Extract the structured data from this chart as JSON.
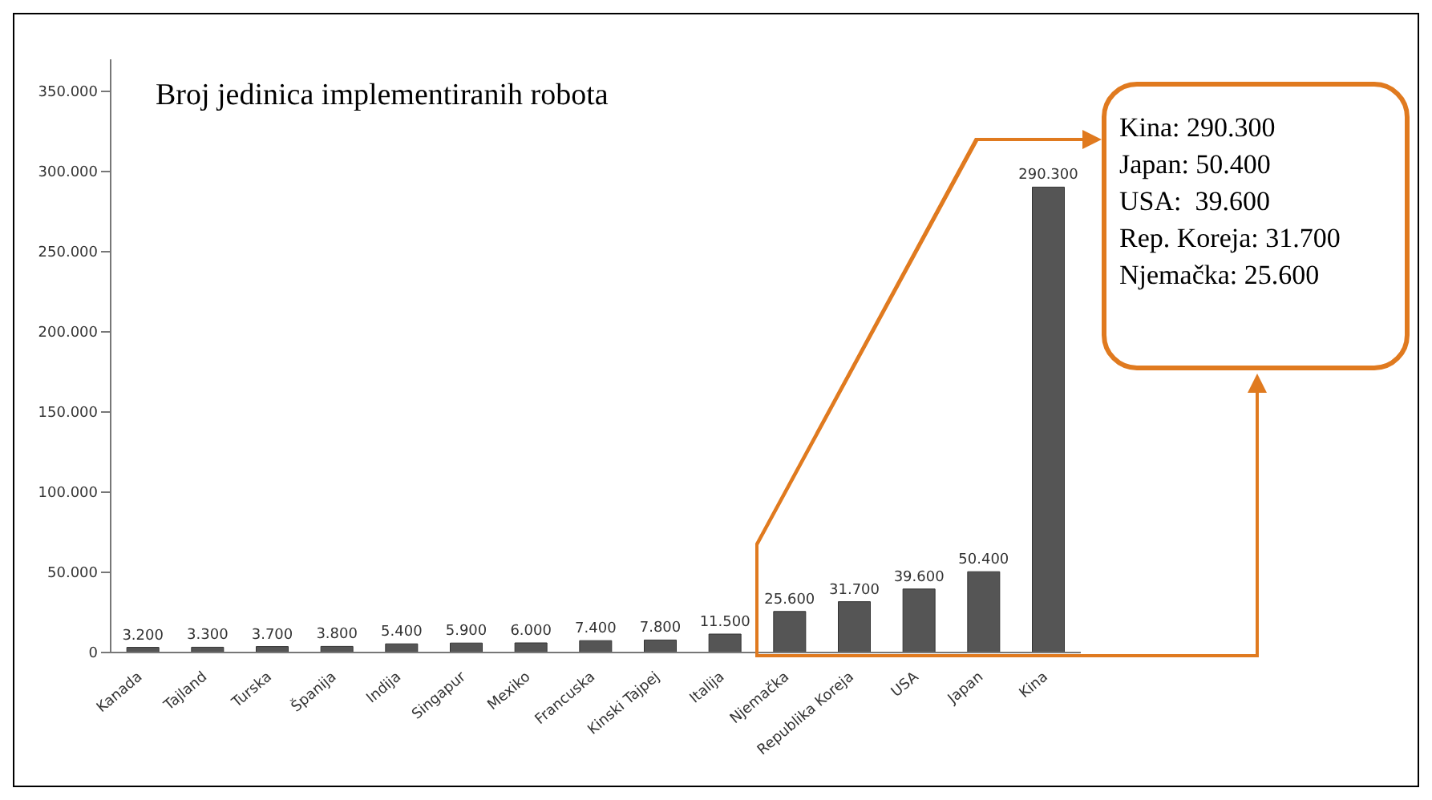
{
  "chart_data": {
    "type": "bar",
    "title": "Broj jedinica implementiranih robota",
    "categories": [
      "Kanada",
      "Tajland",
      "Turska",
      "Španija",
      "Indija",
      "Singapur",
      "Mexiko",
      "Francuska",
      "Kinski Tajpej",
      "Italija",
      "Njemačka",
      "Republika Koreja",
      "USA",
      "Japan",
      "Kina"
    ],
    "values": [
      3200,
      3300,
      3700,
      3800,
      5400,
      5900,
      6000,
      7400,
      7800,
      11500,
      25600,
      31700,
      39600,
      50400,
      290300
    ],
    "value_labels": [
      "3.200",
      "3.300",
      "3.700",
      "3.800",
      "5.400",
      "5.900",
      "6.000",
      "7.400",
      "7.800",
      "11.500",
      "25.600",
      "31.700",
      "39.600",
      "50.400",
      "290.300"
    ],
    "color": "#555555",
    "ylim": [
      0,
      370000
    ],
    "yticks": [
      0,
      {
        "value": 50000,
        "label": "50.000"
      },
      {
        "value": 100000,
        "label": "100.000"
      },
      {
        "value": 150000,
        "label": "150.000"
      },
      {
        "value": 200000,
        "label": "200.000"
      },
      {
        "value": 250000,
        "label": "250.000"
      },
      {
        "value": 300000,
        "label": "300.000"
      },
      {
        "value": 350000,
        "label": "350.000"
      }
    ],
    "annotations": [
      "Kina: 290.300",
      "Japan: 50.400",
      "USA:  39.600",
      "Rep. Koreja: 31.700",
      "Njemačka: 25.600"
    ]
  }
}
